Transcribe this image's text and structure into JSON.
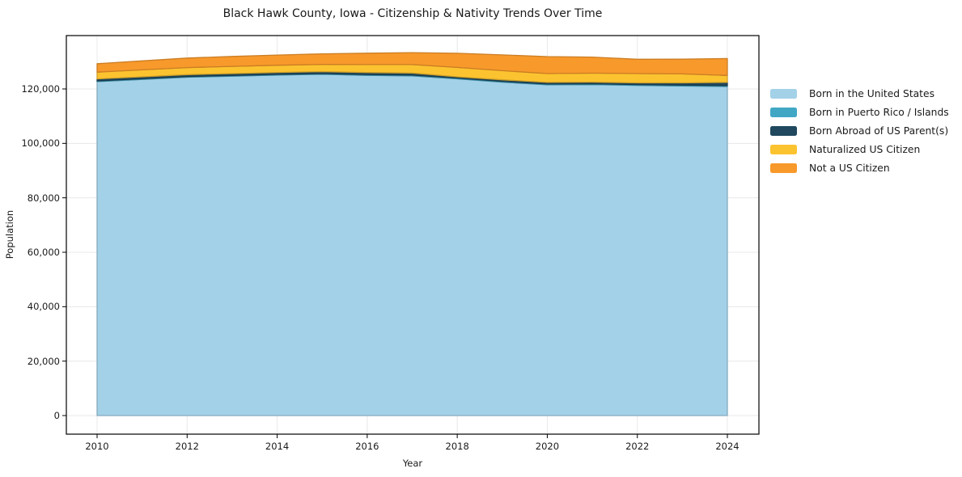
{
  "title": "Black Hawk County, Iowa - Citizenship & Nativity Trends Over Time",
  "chart_data": {
    "type": "area",
    "stacked": true,
    "title": "Black Hawk County, Iowa - Citizenship & Nativity Trends Over Time",
    "xlabel": "Year",
    "ylabel": "Population",
    "grid": true,
    "legend_position": "outside-right",
    "x": [
      2010,
      2011,
      2012,
      2013,
      2014,
      2015,
      2016,
      2017,
      2018,
      2019,
      2020,
      2021,
      2022,
      2023,
      2024
    ],
    "x_tick_labels": [
      "2010",
      "2012",
      "2014",
      "2016",
      "2018",
      "2020",
      "2022",
      "2024"
    ],
    "x_tick_values": [
      2010,
      2012,
      2014,
      2016,
      2018,
      2020,
      2022,
      2024
    ],
    "y_tick_labels": [
      "0",
      "20,000",
      "40,000",
      "60,000",
      "80,000",
      "100,000",
      "120,000"
    ],
    "y_tick_values": [
      0,
      20000,
      40000,
      60000,
      80000,
      100000,
      120000
    ],
    "ylim": [
      -7000,
      139600
    ],
    "series": [
      {
        "name": "Born in the United States",
        "color": "#a3d1e8",
        "values": [
          122700,
          123500,
          124300,
          124700,
          125100,
          125400,
          125000,
          124800,
          123700,
          122500,
          121500,
          121600,
          121300,
          121100,
          120900
        ]
      },
      {
        "name": "Born in Puerto Rico / Islands",
        "color": "#41a7c5",
        "values": [
          250,
          250,
          250,
          250,
          250,
          250,
          280,
          300,
          300,
          300,
          300,
          300,
          300,
          320,
          350
        ]
      },
      {
        "name": "Born Abroad of US Parent(s)",
        "color": "#20485e",
        "values": [
          730,
          720,
          700,
          700,
          700,
          700,
          750,
          750,
          450,
          550,
          600,
          600,
          620,
          800,
          1150
        ]
      },
      {
        "name": "Naturalized US Citizen",
        "color": "#fcc330",
        "values": [
          2500,
          2550,
          2600,
          2650,
          2650,
          2650,
          2900,
          3100,
          3450,
          3350,
          3230,
          3300,
          3430,
          3300,
          2550
        ]
      },
      {
        "name": "Not a US Citizen",
        "color": "#f8992b",
        "values": [
          3100,
          3300,
          3500,
          3650,
          3750,
          3900,
          4200,
          4400,
          5200,
          5800,
          6240,
          5900,
          5250,
          5400,
          6230
        ]
      }
    ]
  },
  "colors": {
    "grid": "#e8e8e8",
    "spine": "#000000",
    "text": "#1a1a1a",
    "background": "#ffffff"
  }
}
